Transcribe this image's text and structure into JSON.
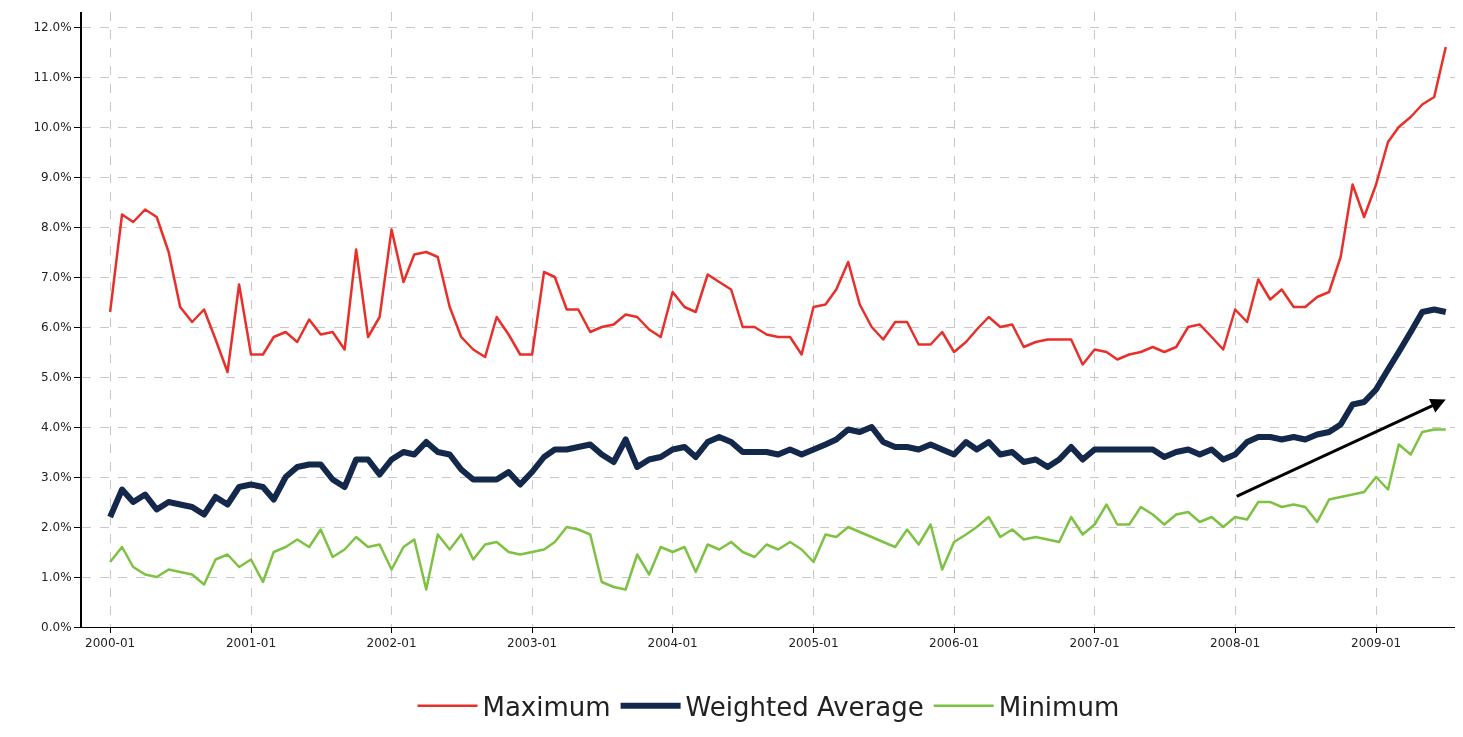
{
  "chart_data": {
    "type": "line",
    "legend": "bottom",
    "grid": true,
    "marker": "none",
    "line_style": "solid",
    "x": [
      "2000-01",
      "2000-02",
      "2000-03",
      "2000-04",
      "2000-05",
      "2000-06",
      "2000-07",
      "2000-08",
      "2000-09",
      "2000-10",
      "2000-11",
      "2000-12",
      "2001-01",
      "2001-02",
      "2001-03",
      "2001-04",
      "2001-05",
      "2001-06",
      "2001-07",
      "2001-08",
      "2001-09",
      "2001-10",
      "2001-11",
      "2001-12",
      "2002-01",
      "2002-02",
      "2002-03",
      "2002-04",
      "2002-05",
      "2002-06",
      "2002-07",
      "2002-08",
      "2002-09",
      "2002-10",
      "2002-11",
      "2002-12",
      "2003-01",
      "2003-02",
      "2003-03",
      "2003-04",
      "2003-05",
      "2003-06",
      "2003-07",
      "2003-08",
      "2003-09",
      "2003-10",
      "2003-11",
      "2003-12",
      "2004-01",
      "2004-02",
      "2004-03",
      "2004-04",
      "2004-05",
      "2004-06",
      "2004-07",
      "2004-08",
      "2004-09",
      "2004-10",
      "2004-11",
      "2004-12",
      "2005-01",
      "2005-02",
      "2005-03",
      "2005-04",
      "2005-05",
      "2005-06",
      "2005-07",
      "2005-08",
      "2005-09",
      "2005-10",
      "2005-11",
      "2005-12",
      "2006-01",
      "2006-02",
      "2006-03",
      "2006-04",
      "2006-05",
      "2006-06",
      "2006-07",
      "2006-08",
      "2006-09",
      "2006-10",
      "2006-11",
      "2006-12",
      "2007-01",
      "2007-02",
      "2007-03",
      "2007-04",
      "2007-05",
      "2007-06",
      "2007-07",
      "2007-08",
      "2007-09",
      "2007-10",
      "2007-11",
      "2007-12",
      "2008-01",
      "2008-02",
      "2008-03",
      "2008-04",
      "2008-05",
      "2008-06",
      "2008-07",
      "2008-08",
      "2008-09",
      "2008-10",
      "2008-11",
      "2008-12",
      "2009-01",
      "2009-02",
      "2009-03",
      "2009-04",
      "2009-05",
      "2009-06",
      "2009-07"
    ],
    "xlim": [
      "1999-10-20",
      "2009-07-25"
    ],
    "xticks": [
      {
        "value": "2000-01",
        "label": "2000-01"
      },
      {
        "value": "2001-01",
        "label": "2001-01"
      },
      {
        "value": "2002-01",
        "label": "2002-01"
      },
      {
        "value": "2003-01",
        "label": "2003-01"
      },
      {
        "value": "2004-01",
        "label": "2004-01"
      },
      {
        "value": "2005-01",
        "label": "2005-01"
      },
      {
        "value": "2006-01",
        "label": "2006-01"
      },
      {
        "value": "2007-01",
        "label": "2007-01"
      },
      {
        "value": "2008-01",
        "label": "2008-01"
      },
      {
        "value": "2009-01",
        "label": "2009-01"
      }
    ],
    "ylim": [
      0,
      12.3
    ],
    "yticks": [
      {
        "value": 0,
        "label": "0.0%"
      },
      {
        "value": 1,
        "label": "1.0%"
      },
      {
        "value": 2,
        "label": "2.0%"
      },
      {
        "value": 3,
        "label": "3.0%"
      },
      {
        "value": 4,
        "label": "4.0%"
      },
      {
        "value": 5,
        "label": "5.0%"
      },
      {
        "value": 6,
        "label": "6.0%"
      },
      {
        "value": 7,
        "label": "7.0%"
      },
      {
        "value": 8,
        "label": "8.0%"
      },
      {
        "value": 9,
        "label": "9.0%"
      },
      {
        "value": 10,
        "label": "10.0%"
      },
      {
        "value": 11,
        "label": "11.0%"
      },
      {
        "value": 12,
        "label": "12.0%"
      }
    ],
    "series": [
      {
        "name": "Maximum",
        "color": "#e8302a",
        "values": [
          6.3,
          8.25,
          8.1,
          8.35,
          8.2,
          7.5,
          6.4,
          6.1,
          6.35,
          5.75,
          5.1,
          6.85,
          5.45,
          5.45,
          5.8,
          5.9,
          5.7,
          6.15,
          5.85,
          5.9,
          5.55,
          7.55,
          5.8,
          6.2,
          7.95,
          6.9,
          7.45,
          7.5,
          7.4,
          6.4,
          5.8,
          5.55,
          5.4,
          6.2,
          5.85,
          5.45,
          5.45,
          7.1,
          7.0,
          6.35,
          6.35,
          5.9,
          6.0,
          6.05,
          6.25,
          6.2,
          5.95,
          5.8,
          6.7,
          6.4,
          6.3,
          7.05,
          6.9,
          6.75,
          6.0,
          6.0,
          5.85,
          5.8,
          5.8,
          5.45,
          6.4,
          6.45,
          6.75,
          7.3,
          6.45,
          6.0,
          5.75,
          6.1,
          6.1,
          5.65,
          5.65,
          5.9,
          5.5,
          5.7,
          5.95,
          6.2,
          6.0,
          6.05,
          5.6,
          5.7,
          5.75,
          5.75,
          5.75,
          5.25,
          5.55,
          5.5,
          5.35,
          5.45,
          5.5,
          5.6,
          5.5,
          5.6,
          6.0,
          6.05,
          5.8,
          5.55,
          6.35,
          6.1,
          6.95,
          6.55,
          6.75,
          6.4,
          6.4,
          6.6,
          6.7,
          7.4,
          8.85,
          8.2,
          8.85,
          9.7,
          10.0,
          10.2,
          10.45,
          10.6,
          11.6
        ]
      },
      {
        "name": "Weighted Average",
        "color": "#13284b",
        "values": [
          2.2,
          2.75,
          2.5,
          2.65,
          2.35,
          2.5,
          2.45,
          2.4,
          2.25,
          2.6,
          2.45,
          2.8,
          2.85,
          2.8,
          2.55,
          3.0,
          3.2,
          3.25,
          3.25,
          2.95,
          2.8,
          3.35,
          3.35,
          3.05,
          3.35,
          3.5,
          3.45,
          3.7,
          3.5,
          3.45,
          3.15,
          2.95,
          2.95,
          2.95,
          3.1,
          2.85,
          3.1,
          3.4,
          3.55,
          3.55,
          3.6,
          3.65,
          3.45,
          3.3,
          3.75,
          3.2,
          3.35,
          3.4,
          3.55,
          3.6,
          3.4,
          3.7,
          3.8,
          3.7,
          3.5,
          3.5,
          3.5,
          3.45,
          3.55,
          3.45,
          3.55,
          3.65,
          3.75,
          3.95,
          3.9,
          4.0,
          3.7,
          3.6,
          3.6,
          3.55,
          3.65,
          3.55,
          3.45,
          3.7,
          3.55,
          3.7,
          3.45,
          3.5,
          3.3,
          3.35,
          3.2,
          3.35,
          3.6,
          3.35,
          3.55,
          3.55,
          3.55,
          3.55,
          3.55,
          3.55,
          3.4,
          3.5,
          3.55,
          3.45,
          3.55,
          3.35,
          3.45,
          3.7,
          3.8,
          3.8,
          3.75,
          3.8,
          3.75,
          3.85,
          3.9,
          4.05,
          4.45,
          4.5,
          4.75,
          5.15,
          5.5,
          5.9,
          6.3,
          6.35,
          6.3
        ]
      },
      {
        "name": "Minimum",
        "color": "#7dc242",
        "values": [
          1.3,
          1.6,
          1.2,
          1.05,
          1.0,
          1.15,
          1.1,
          1.05,
          0.85,
          1.35,
          1.45,
          1.2,
          1.35,
          0.9,
          1.5,
          1.6,
          1.75,
          1.6,
          1.95,
          1.4,
          1.55,
          1.8,
          1.6,
          1.65,
          1.15,
          1.6,
          1.75,
          0.75,
          1.85,
          1.55,
          1.85,
          1.35,
          1.65,
          1.7,
          1.5,
          1.45,
          1.5,
          1.55,
          1.7,
          2.0,
          1.95,
          1.85,
          0.9,
          0.8,
          0.75,
          1.45,
          1.05,
          1.6,
          1.5,
          1.6,
          1.1,
          1.65,
          1.55,
          1.7,
          1.5,
          1.4,
          1.65,
          1.55,
          1.7,
          1.55,
          1.3,
          1.85,
          1.8,
          2.0,
          1.9,
          1.8,
          1.7,
          1.6,
          1.95,
          1.65,
          2.05,
          1.15,
          1.7,
          1.85,
          2.0,
          2.2,
          1.8,
          1.95,
          1.75,
          1.8,
          1.75,
          1.7,
          2.2,
          1.85,
          2.05,
          2.45,
          2.05,
          2.05,
          2.4,
          2.25,
          2.05,
          2.25,
          2.3,
          2.1,
          2.2,
          2.0,
          2.2,
          2.15,
          2.5,
          2.5,
          2.4,
          2.45,
          2.4,
          2.1,
          2.55,
          2.6,
          2.65,
          2.7,
          3.0,
          2.75,
          3.65,
          3.45,
          3.9,
          3.95,
          3.95
        ]
      }
    ]
  }
}
